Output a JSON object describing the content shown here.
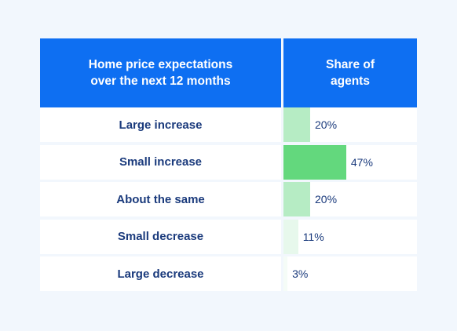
{
  "header": {
    "left_line1": "Home price expectations",
    "left_line2": "over the next 12 months",
    "right_line1": "Share of",
    "right_line2": "agents"
  },
  "rows": [
    {
      "label": "Large increase",
      "value_label": "20%"
    },
    {
      "label": "Small increase",
      "value_label": "47%"
    },
    {
      "label": "About the same",
      "value_label": "20%"
    },
    {
      "label": "Small decrease",
      "value_label": "11%"
    },
    {
      "label": "Large decrease",
      "value_label": "3%"
    }
  ],
  "colors": {
    "header_bg": "#0e6ff2",
    "page_bg": "#f2f7fd",
    "label_text": "#1a3a7c",
    "bar_shades": [
      "#b6ecc4",
      "#63d87d",
      "#b6ecc4",
      "#e7f8ec",
      "#f5fcf7"
    ]
  },
  "chart_data": {
    "type": "table",
    "columns": [
      "Home price expectations over the next 12 months",
      "Share of agents"
    ],
    "categories": [
      "Large increase",
      "Small increase",
      "About the same",
      "Small decrease",
      "Large decrease"
    ],
    "values": [
      20,
      47,
      20,
      11,
      3
    ],
    "unit": "%",
    "bar_scale_max": 100
  }
}
